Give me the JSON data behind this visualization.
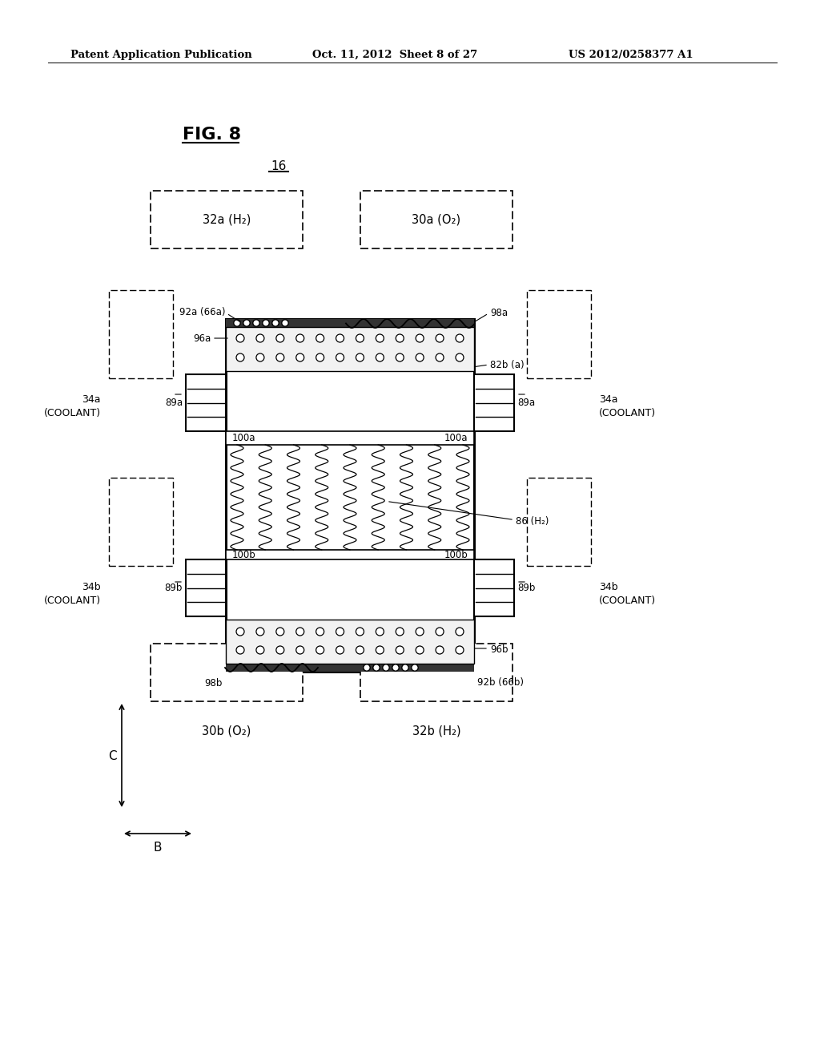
{
  "bg_color": "#ffffff",
  "header_left": "Patent Application Publication",
  "header_mid": "Oct. 11, 2012  Sheet 8 of 27",
  "header_right": "US 2012/0258377 A1",
  "fig_label": "FIG. 8",
  "ref_16": "16",
  "label_32a": "32a (H₂)",
  "label_30a": "30a (O₂)",
  "label_34a": "34a\n(COOLANT)",
  "label_34b": "34b\n(COOLANT)",
  "label_92a": "92a (66a)",
  "label_96a": "96a",
  "label_98a": "98a",
  "label_82ba": "82b (a)",
  "label_89a": "89a",
  "label_100a": "100a",
  "label_86": "86 (H₂)",
  "label_100b": "100b",
  "label_89b": "89b",
  "label_96b": "96b",
  "label_98b": "98b",
  "label_92b": "92b (66b)",
  "label_30b": "30b (O₂)",
  "label_32b": "32b (H₂)",
  "label_C": "C",
  "label_B": "B"
}
